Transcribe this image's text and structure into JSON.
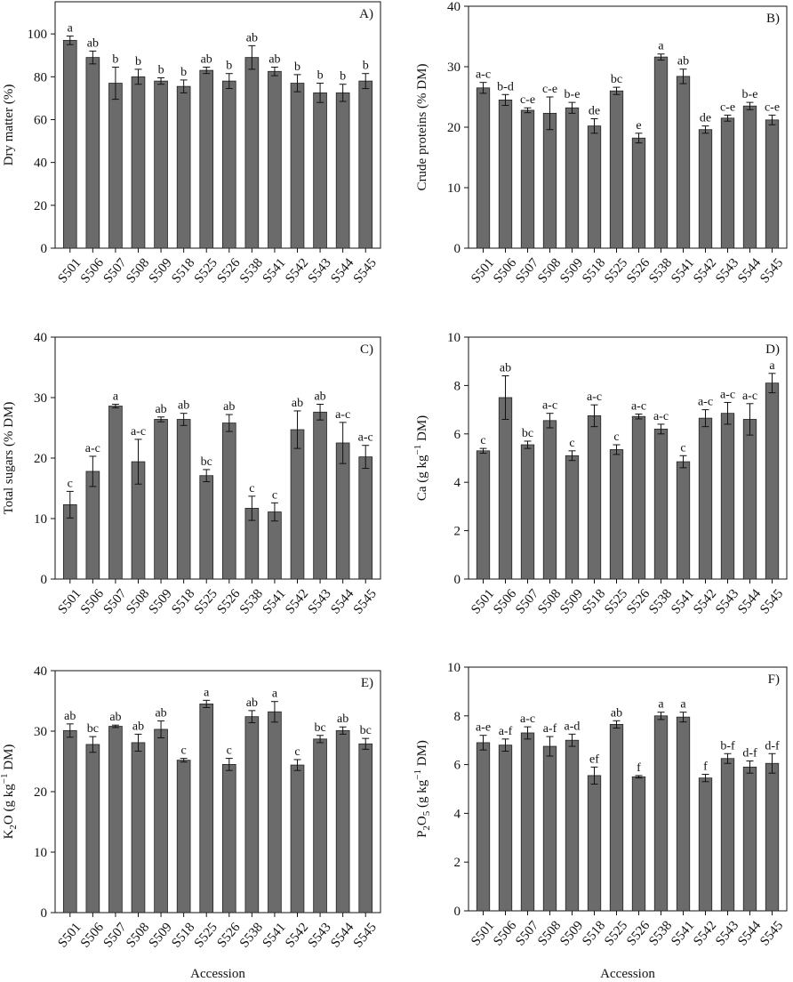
{
  "chart_data": [
    {
      "type": "bar",
      "title": "A)",
      "ylabel": "Dry matter (%)",
      "xlabel": "",
      "ylim": [
        0,
        115
      ],
      "yticks": [
        0,
        20,
        40,
        60,
        80,
        100
      ],
      "categories": [
        "S501",
        "S506",
        "S507",
        "S508",
        "S509",
        "S518",
        "S525",
        "S526",
        "S538",
        "S541",
        "S542",
        "S543",
        "S544",
        "S545"
      ],
      "values": [
        97,
        89,
        77,
        80,
        78,
        75.5,
        83,
        78,
        89,
        82.5,
        77,
        72.5,
        72.5,
        78
      ],
      "errors": [
        2,
        3,
        7.5,
        3.5,
        1.5,
        3,
        1.5,
        3.5,
        5.5,
        2,
        4,
        4.5,
        4,
        3.5
      ],
      "letters": [
        "a",
        "ab",
        "b",
        "b",
        "b",
        "b",
        "ab",
        "b",
        "ab",
        "ab",
        "b",
        "b",
        "b",
        "b"
      ]
    },
    {
      "type": "bar",
      "title": "B)",
      "ylabel": "Crude proteins (% DM)",
      "xlabel": "",
      "ylim": [
        0,
        40
      ],
      "yticks": [
        0,
        10,
        20,
        30,
        40
      ],
      "categories": [
        "S501",
        "S506",
        "S507",
        "S508",
        "S509",
        "S518",
        "S525",
        "S526",
        "S538",
        "S541",
        "S542",
        "S543",
        "S544",
        "S545"
      ],
      "values": [
        26.5,
        24.5,
        22.8,
        22.3,
        23.2,
        20.2,
        26,
        18.2,
        31.6,
        28.4,
        19.6,
        21.5,
        23.5,
        21.2
      ],
      "errors": [
        0.9,
        0.9,
        0.4,
        2.7,
        0.9,
        1.2,
        0.6,
        0.8,
        0.5,
        1.2,
        0.6,
        0.5,
        0.6,
        0.8
      ],
      "letters": [
        "a-c",
        "b-d",
        "c-e",
        "c-e",
        "b-e",
        "de",
        "bc",
        "e",
        "a",
        "ab",
        "de",
        "c-e",
        "b-e",
        "c-e"
      ]
    },
    {
      "type": "bar",
      "title": "C)",
      "ylabel": "Total sugars (% DM)",
      "xlabel": "",
      "ylim": [
        0,
        40
      ],
      "yticks": [
        0,
        10,
        20,
        30,
        40
      ],
      "categories": [
        "S501",
        "S506",
        "S507",
        "S508",
        "S509",
        "S518",
        "S525",
        "S526",
        "S538",
        "S541",
        "S542",
        "S543",
        "S544",
        "S545"
      ],
      "values": [
        12.3,
        17.8,
        28.6,
        19.4,
        26.4,
        26.4,
        17.1,
        25.8,
        11.7,
        11.1,
        24.7,
        27.6,
        22.5,
        20.2
      ],
      "errors": [
        2.2,
        2.5,
        0.3,
        3.7,
        0.4,
        1.0,
        1.0,
        1.4,
        2.0,
        1.5,
        3.1,
        1.3,
        3.4,
        1.9
      ],
      "letters": [
        "c",
        "a-c",
        "a",
        "a-c",
        "ab",
        "ab",
        "bc",
        "ab",
        "c",
        "c",
        "ab",
        "ab",
        "a-c",
        "a-c"
      ]
    },
    {
      "type": "bar",
      "title": "D)",
      "ylabel": "Ca (g kg⁻¹ DM)",
      "xlabel": "",
      "ylim": [
        0,
        10
      ],
      "yticks": [
        0,
        2,
        4,
        6,
        8,
        10
      ],
      "categories": [
        "S501",
        "S506",
        "S507",
        "S508",
        "S509",
        "S518",
        "S525",
        "S526",
        "S538",
        "S541",
        "S542",
        "S543",
        "S544",
        "S545"
      ],
      "values": [
        5.3,
        7.5,
        5.55,
        6.55,
        5.1,
        6.75,
        5.35,
        6.72,
        6.2,
        4.85,
        6.65,
        6.85,
        6.6,
        8.1
      ],
      "errors": [
        0.1,
        0.9,
        0.15,
        0.3,
        0.2,
        0.45,
        0.2,
        0.1,
        0.2,
        0.25,
        0.35,
        0.45,
        0.65,
        0.4
      ],
      "letters": [
        "c",
        "ab",
        "bc",
        "a-c",
        "c",
        "a-c",
        "c",
        "a-c",
        "a-c",
        "c",
        "a-c",
        "a-c",
        "a-c",
        "a"
      ]
    },
    {
      "type": "bar",
      "title": "E)",
      "ylabel": "K₂O (g kg⁻¹ DM)",
      "xlabel": "Accession",
      "ylim": [
        0,
        40
      ],
      "yticks": [
        0,
        10,
        20,
        30,
        40
      ],
      "categories": [
        "S501",
        "S506",
        "S507",
        "S508",
        "S509",
        "S518",
        "S525",
        "S526",
        "S538",
        "S541",
        "S542",
        "S543",
        "S544",
        "S545"
      ],
      "values": [
        30.1,
        27.8,
        30.8,
        28.1,
        30.3,
        25.2,
        34.5,
        24.5,
        32.4,
        33.2,
        24.4,
        28.7,
        30.1,
        27.9
      ],
      "errors": [
        1.1,
        1.3,
        0.2,
        1.4,
        1.4,
        0.3,
        0.6,
        1.0,
        1.0,
        1.7,
        0.9,
        0.6,
        0.6,
        0.9
      ],
      "letters": [
        "ab",
        "bc",
        "ab",
        "ab",
        "ab",
        "c",
        "a",
        "c",
        "ab",
        "a",
        "c",
        "bc",
        "ab",
        "bc"
      ]
    },
    {
      "type": "bar",
      "title": "F)",
      "ylabel": "P₂O₅ (g kg⁻¹ DM)",
      "xlabel": "Accession",
      "ylim": [
        0,
        10
      ],
      "yticks": [
        0,
        2,
        4,
        6,
        8,
        10
      ],
      "categories": [
        "S501",
        "S506",
        "S507",
        "S508",
        "S509",
        "S518",
        "S525",
        "S526",
        "S538",
        "S541",
        "S542",
        "S543",
        "S544",
        "S545"
      ],
      "values": [
        6.9,
        6.8,
        7.3,
        6.75,
        7.0,
        5.55,
        7.65,
        5.5,
        8.0,
        7.95,
        5.45,
        6.25,
        5.9,
        6.05
      ],
      "errors": [
        0.3,
        0.25,
        0.25,
        0.4,
        0.25,
        0.35,
        0.15,
        0.05,
        0.15,
        0.2,
        0.15,
        0.2,
        0.25,
        0.4
      ],
      "letters": [
        "a-e",
        "a-f",
        "a-c",
        "a-f",
        "a-d",
        "ef",
        "ab",
        "f",
        "a",
        "a",
        "f",
        "b-f",
        "d-f",
        "d-f"
      ]
    }
  ]
}
